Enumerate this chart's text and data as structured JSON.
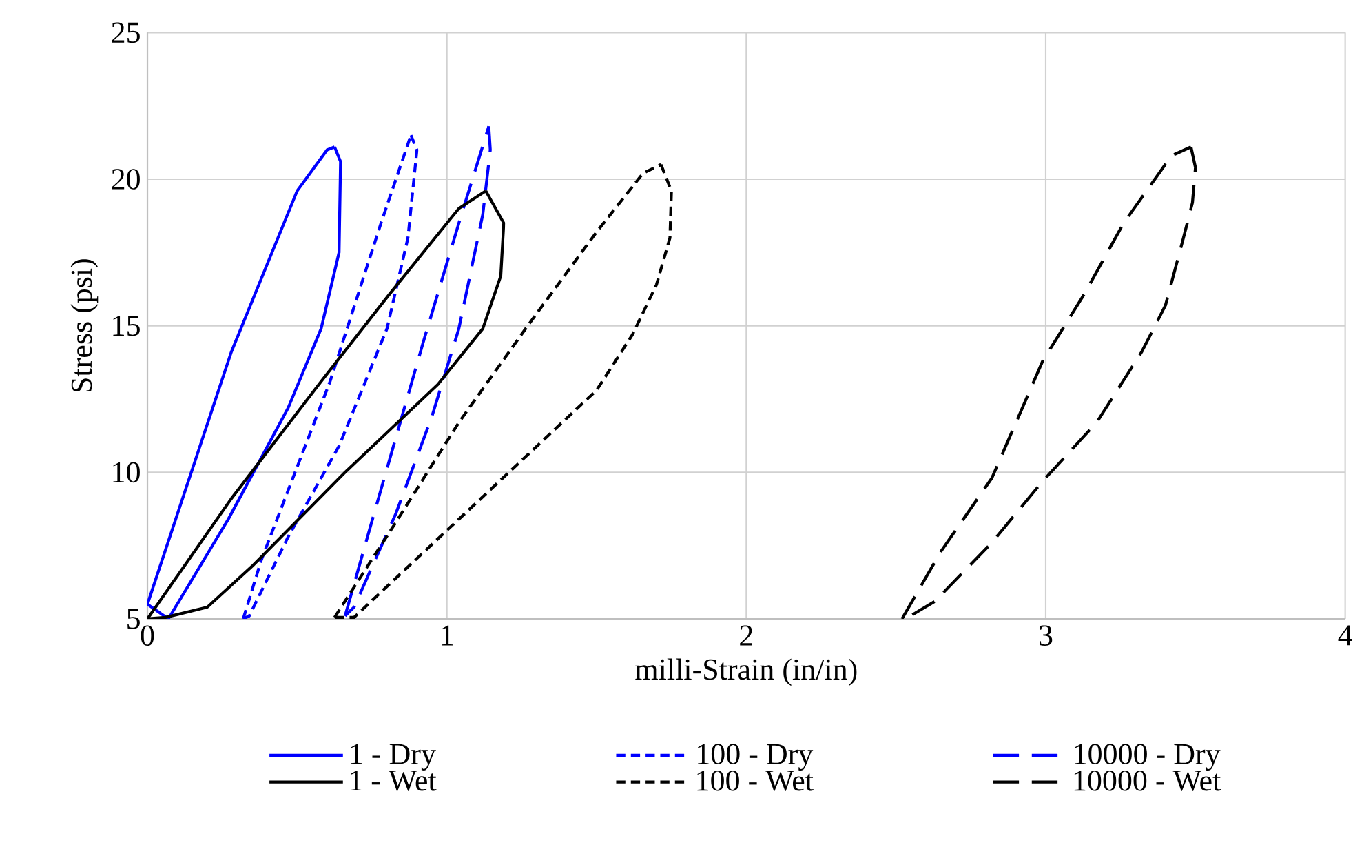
{
  "chart_data": {
    "type": "line",
    "xlabel": "milli-Strain (in/in)",
    "ylabel": "Stress (psi)",
    "xlim": [
      0,
      4
    ],
    "xticks": [
      0,
      1,
      2,
      3,
      4
    ],
    "ylim": [
      5,
      25
    ],
    "yticks": [
      5,
      10,
      15,
      20,
      25
    ],
    "grid": true,
    "legend": "bottom",
    "marker": "none",
    "series": [
      {
        "name": "1 -   Dry",
        "color": "#0000ff",
        "line_style": "solid",
        "x": [
          0.0,
          0.28,
          0.5,
          0.6,
          0.625
        ],
        "values": [
          5.5,
          14.1,
          19.6,
          21.0,
          21.1
        ]
      },
      {
        "color": "#0000ff",
        "line_style": "solid",
        "x": [
          0.625,
          0.645,
          0.64,
          0.58,
          0.47,
          0.27,
          0.07,
          0.0
        ],
        "values": [
          21.1,
          20.6,
          17.5,
          14.9,
          12.2,
          8.4,
          5.0,
          5.5
        ]
      },
      {
        "name": "100 -   Dry",
        "color": "#0000ff",
        "line_style": "dashed",
        "x": [
          0.32,
          0.38,
          0.61,
          0.78,
          0.88
        ],
        "values": [
          5.0,
          7.0,
          13.1,
          18.5,
          21.5
        ]
      },
      {
        "color": "#0000ff",
        "line_style": "dashed",
        "x": [
          0.88,
          0.9,
          0.87,
          0.8,
          0.64,
          0.47,
          0.34,
          0.32
        ],
        "values": [
          21.5,
          21.0,
          18.0,
          14.9,
          10.9,
          7.8,
          5.1,
          5.0
        ]
      },
      {
        "name": "10000 -   Dry",
        "color": "#0000ff",
        "line_style": "long dashed",
        "x": [
          0.66,
          0.76,
          0.92,
          1.04,
          1.14
        ],
        "values": [
          5.1,
          8.7,
          14.4,
          18.5,
          21.8
        ]
      },
      {
        "color": "#0000ff",
        "line_style": "long dashed",
        "x": [
          1.14,
          1.145,
          1.12,
          1.04,
          0.95,
          0.83,
          0.69,
          0.66
        ],
        "values": [
          21.8,
          21.0,
          18.8,
          14.9,
          11.9,
          8.6,
          5.4,
          5.1
        ]
      },
      {
        "name": "1 -   Wet",
        "color": "#000000",
        "line_style": "solid",
        "x": [
          0.0,
          0.28,
          0.58,
          0.81,
          1.04,
          1.13
        ],
        "values": [
          5.0,
          9.1,
          13.1,
          16.1,
          19.0,
          19.6
        ]
      },
      {
        "color": "#000000",
        "line_style": "solid",
        "x": [
          1.13,
          1.19,
          1.18,
          1.12,
          0.97,
          0.66,
          0.35,
          0.2,
          0.06,
          0.0
        ],
        "values": [
          19.6,
          18.5,
          16.7,
          14.9,
          13.0,
          10.0,
          6.8,
          5.4,
          5.05,
          5.0
        ]
      },
      {
        "name": "100 -   Wet",
        "color": "#000000",
        "line_style": "dashed",
        "x": [
          0.625,
          0.83,
          1.04,
          1.27,
          1.5,
          1.655,
          1.715
        ],
        "values": [
          5.05,
          8.3,
          11.7,
          15.0,
          18.2,
          20.2,
          20.5
        ]
      },
      {
        "color": "#000000",
        "line_style": "dashed",
        "x": [
          1.715,
          1.75,
          1.745,
          1.7,
          1.62,
          1.5,
          1.27,
          1.04,
          0.81,
          0.69,
          0.625
        ],
        "values": [
          20.5,
          19.6,
          18.0,
          16.4,
          14.7,
          12.8,
          10.6,
          8.4,
          6.2,
          5.05,
          5.05
        ]
      },
      {
        "name": "10000 -   Wet",
        "color": "#000000",
        "line_style": "long dashed",
        "x": [
          2.52,
          2.65,
          2.82,
          2.99,
          3.13,
          3.26,
          3.42,
          3.485
        ],
        "values": [
          5.0,
          7.3,
          9.8,
          13.8,
          16.1,
          18.5,
          20.8,
          21.1
        ]
      },
      {
        "color": "#000000",
        "line_style": "long dashed",
        "x": [
          3.485,
          3.5,
          3.49,
          3.46,
          3.4,
          3.32,
          3.17,
          2.99,
          2.82,
          2.63,
          2.54
        ],
        "values": [
          21.1,
          20.4,
          19.2,
          18.0,
          15.7,
          14.1,
          11.7,
          9.7,
          7.6,
          5.6,
          5.05
        ]
      }
    ]
  }
}
